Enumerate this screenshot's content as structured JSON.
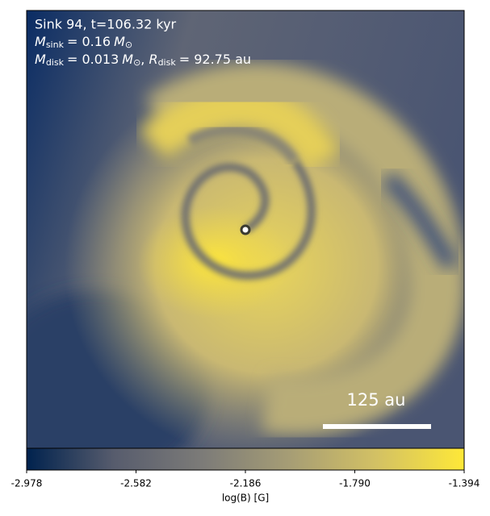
{
  "chart_data": {
    "type": "image",
    "annotation_lines": [
      [
        "Sink 94, t=106.32 kyr"
      ],
      [
        "M",
        "sink",
        "= 0.16",
        "M",
        "⊙"
      ],
      [
        "M",
        "disk",
        "= 0.013",
        "M",
        "⊙",
        ", ",
        "R",
        "disk",
        "= 92.75 au"
      ]
    ],
    "scale_bar_label": "125 au",
    "colorbar": {
      "label": "log(B) [G]",
      "xlim": [
        -2.978,
        -1.394
      ],
      "xticks": [
        -2.978,
        -2.582,
        -2.186,
        {
          "value": -1.79,
          "label": "-1.790"
        },
        -1.394
      ],
      "colormap": [
        "#00224e",
        "#575c6d",
        "#7c7b78",
        "#a69d75",
        "#d3c164",
        "#fee838"
      ]
    }
  }
}
